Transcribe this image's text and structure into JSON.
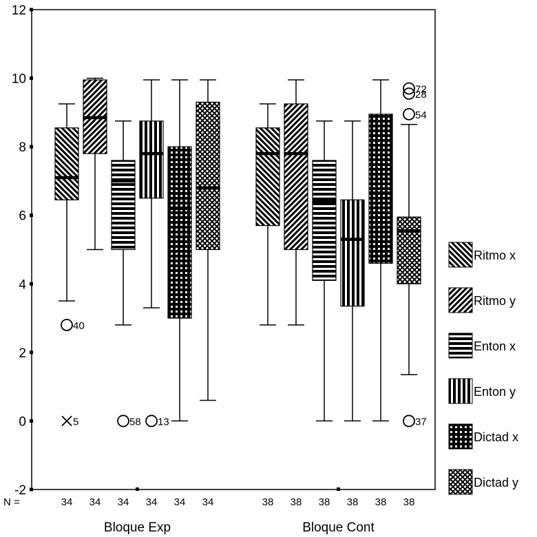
{
  "chart_data": {
    "type": "boxplot",
    "ylim": [
      -2,
      12
    ],
    "yticks": [
      -2,
      0,
      2,
      4,
      6,
      8,
      10,
      12
    ],
    "n_prefix": "N =",
    "groups": [
      {
        "label": "Bloque Exp",
        "n": [
          "34",
          "34",
          "34",
          "34",
          "34",
          "34"
        ]
      },
      {
        "label": "Bloque Cont",
        "n": [
          "38",
          "38",
          "38",
          "38",
          "38",
          "38"
        ]
      }
    ],
    "series": [
      {
        "name": "Ritmo x",
        "pattern": "diag-down"
      },
      {
        "name": "Ritmo y",
        "pattern": "diag-up"
      },
      {
        "name": "Enton x",
        "pattern": "horiz"
      },
      {
        "name": "Enton y",
        "pattern": "vert"
      },
      {
        "name": "Dictad x",
        "pattern": "grid"
      },
      {
        "name": "Dictad y",
        "pattern": "cross"
      }
    ],
    "boxes": [
      {
        "group": 0,
        "series": 0,
        "min": 3.5,
        "q1": 6.45,
        "median": 7.1,
        "q3": 8.55,
        "max": 9.25,
        "outliers": [
          {
            "value": 2.8,
            "label": "40",
            "marker": "circle"
          },
          {
            "value": 0,
            "label": "5",
            "marker": "x"
          }
        ]
      },
      {
        "group": 0,
        "series": 1,
        "min": 5.0,
        "q1": 7.8,
        "median": 8.85,
        "q3": 9.95,
        "max": 10.0,
        "outliers": []
      },
      {
        "group": 0,
        "series": 2,
        "min": 2.8,
        "q1": 5.0,
        "median": 7.0,
        "q3": 7.6,
        "max": 8.75,
        "outliers": [
          {
            "value": 0,
            "label": "58",
            "marker": "circle"
          }
        ]
      },
      {
        "group": 0,
        "series": 3,
        "min": 3.3,
        "q1": 6.5,
        "median": 7.8,
        "q3": 8.75,
        "max": 9.95,
        "outliers": [
          {
            "value": 0,
            "label": "13",
            "marker": "circle"
          }
        ]
      },
      {
        "group": 0,
        "series": 4,
        "min": 0,
        "q1": 3.0,
        "median": 6.2,
        "q3": 8.0,
        "max": 9.95,
        "outliers": []
      },
      {
        "group": 0,
        "series": 5,
        "min": 0.6,
        "q1": 5.0,
        "median": 6.8,
        "q3": 9.3,
        "max": 9.95,
        "outliers": []
      },
      {
        "group": 1,
        "series": 0,
        "min": 2.8,
        "q1": 5.7,
        "median": 7.8,
        "q3": 8.55,
        "max": 9.25,
        "outliers": []
      },
      {
        "group": 1,
        "series": 1,
        "min": 2.8,
        "q1": 5.0,
        "median": 7.8,
        "q3": 9.25,
        "max": 9.95,
        "outliers": []
      },
      {
        "group": 1,
        "series": 2,
        "min": 0,
        "q1": 4.1,
        "median": 6.4,
        "q3": 7.6,
        "max": 8.75,
        "outliers": []
      },
      {
        "group": 1,
        "series": 3,
        "min": 0,
        "q1": 3.35,
        "median": 5.3,
        "q3": 6.45,
        "max": 8.75,
        "outliers": []
      },
      {
        "group": 1,
        "series": 4,
        "min": 0,
        "q1": 4.6,
        "median": 6.65,
        "q3": 8.95,
        "max": 9.95,
        "outliers": []
      },
      {
        "group": 1,
        "series": 5,
        "min": 1.35,
        "q1": 4.0,
        "median": 5.55,
        "q3": 5.95,
        "max": 8.65,
        "outliers": [
          {
            "value": 9.7,
            "label": "72",
            "marker": "circle"
          },
          {
            "value": 9.55,
            "label": "28",
            "marker": "circle"
          },
          {
            "value": 8.95,
            "label": "54",
            "marker": "circle"
          },
          {
            "value": 0,
            "label": "37",
            "marker": "circle"
          }
        ]
      }
    ]
  }
}
